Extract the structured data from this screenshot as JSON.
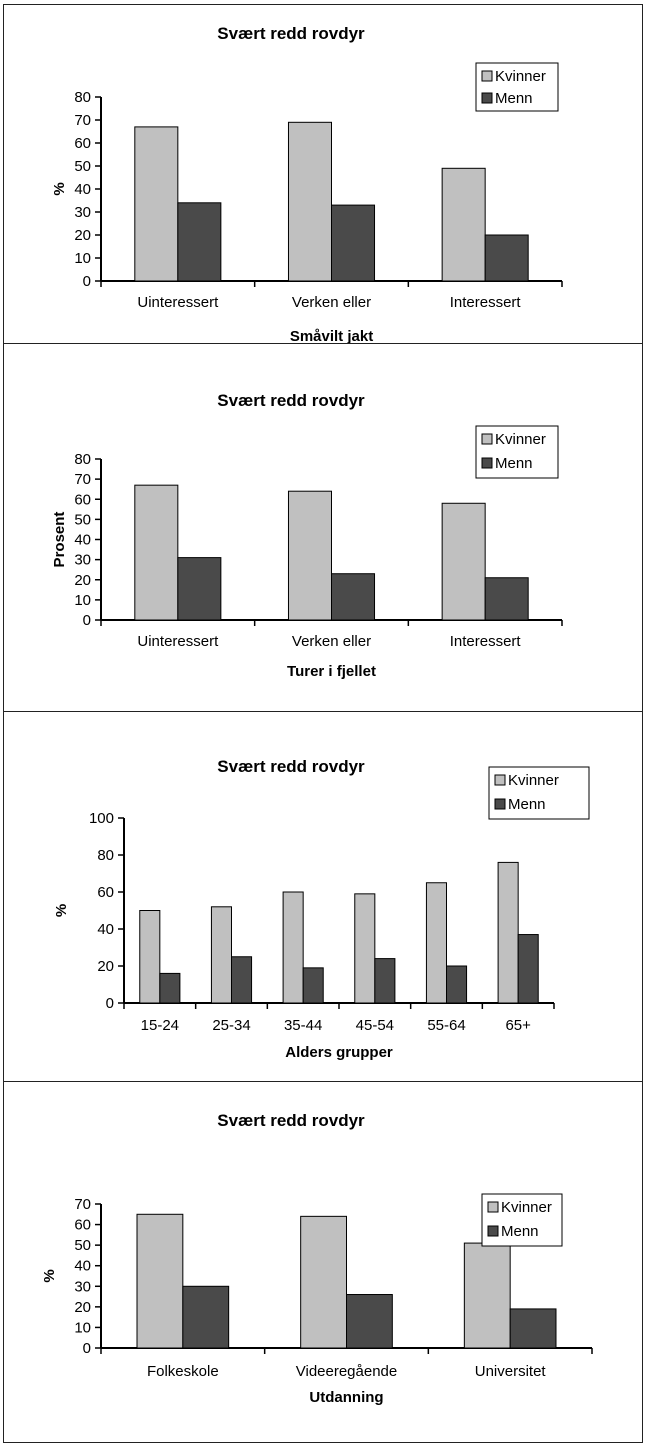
{
  "chart_data": [
    {
      "type": "bar",
      "title": "Svært redd rovdyr",
      "xlabel": "Småvilt jakt",
      "ylabel": "%",
      "ylim": [
        0,
        80
      ],
      "yticks": [
        0,
        10,
        20,
        30,
        40,
        50,
        60,
        70,
        80
      ],
      "categories": [
        "Uinteressert",
        "Verken eller",
        "Interessert"
      ],
      "series": [
        {
          "name": "Kvinner",
          "values": [
            67,
            69,
            49
          ]
        },
        {
          "name": "Menn",
          "values": [
            34,
            33,
            20
          ]
        }
      ],
      "legend": "top-right",
      "grid": false
    },
    {
      "type": "bar",
      "title": "Svært redd rovdyr",
      "xlabel": "Turer i fjellet",
      "ylabel": "Prosent",
      "ylim": [
        0,
        80
      ],
      "yticks": [
        0,
        10,
        20,
        30,
        40,
        50,
        60,
        70,
        80
      ],
      "categories": [
        "Uinteressert",
        "Verken eller",
        "Interessert"
      ],
      "series": [
        {
          "name": "Kvinner",
          "values": [
            67,
            64,
            58
          ]
        },
        {
          "name": "Menn",
          "values": [
            31,
            23,
            21
          ]
        }
      ],
      "legend": "top-right",
      "grid": false
    },
    {
      "type": "bar",
      "title": "Svært redd rovdyr",
      "xlabel": "Alders grupper",
      "ylabel": "%",
      "ylim": [
        0,
        100
      ],
      "yticks": [
        0,
        20,
        40,
        60,
        80,
        100
      ],
      "categories": [
        "15-24",
        "25-34",
        "35-44",
        "45-54",
        "55-64",
        "65+"
      ],
      "series": [
        {
          "name": "Kvinner",
          "values": [
            50,
            52,
            60,
            59,
            65,
            76
          ]
        },
        {
          "name": "Menn",
          "values": [
            16,
            25,
            19,
            24,
            20,
            37
          ]
        }
      ],
      "legend": "top-right",
      "grid": false
    },
    {
      "type": "bar",
      "title": "Svært redd rovdyr",
      "xlabel": "Utdanning",
      "ylabel": "%",
      "ylim": [
        0,
        70
      ],
      "yticks": [
        0,
        10,
        20,
        30,
        40,
        50,
        60,
        70
      ],
      "categories": [
        "Folkeskole",
        "Videeregående",
        "Universitet"
      ],
      "series": [
        {
          "name": "Kvinner",
          "values": [
            65,
            64,
            51
          ]
        },
        {
          "name": "Menn",
          "values": [
            30,
            26,
            19
          ]
        }
      ],
      "legend": "top-right",
      "grid": false
    }
  ],
  "colors": {
    "Kvinner": "#c0c0c0",
    "Menn": "#4a4a4a"
  }
}
